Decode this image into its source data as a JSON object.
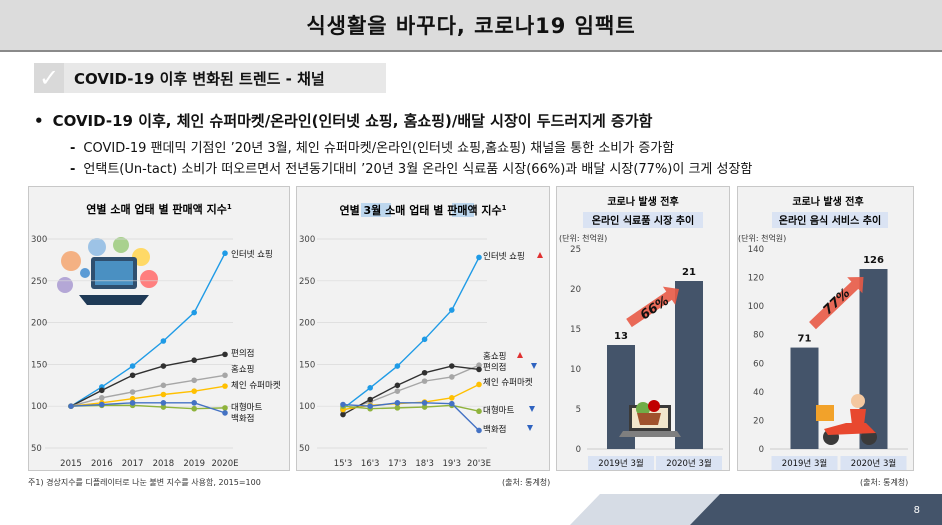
{
  "header": {
    "title": "식생활을 바꾸다, 코로나19 임팩트"
  },
  "section": {
    "check_glyph": "✓",
    "label": "COVID-19 이후 변화된 트렌드 - 채널"
  },
  "bullets": {
    "main_marker": "•",
    "main": "COVID-19 이후, 체인 슈퍼마켓/온라인(인터넷 쇼핑, 홈쇼핑)/배달 시장이 두드러지게 증가함",
    "sub_marker": "-",
    "sub": [
      "COVID-19 팬데믹 기점인 ’20년 3월, 체인 슈퍼마켓/온라인(인터넷 쇼핑,홈쇼핑) 채널을 통한 소비가 증가함",
      "언택트(Un-tact) 소비가 떠오르면서 전년동기대비 ’20년 3월 온라인 식료품 시장(66%)과 배달 시장(77%)이 크게 성장함"
    ]
  },
  "colors": {
    "blue": "#1f9be6",
    "dark": "#303030",
    "gray": "#a6a6a6",
    "yellow": "#ffc000",
    "green": "#8fb33c",
    "navy": "#4472c4",
    "bar": "#44546a",
    "up": "#e03030",
    "down": "#2f63c0"
  },
  "icons": {
    "chart1": "online-shopping-illustration",
    "chart3": "laptop-grocery-icon",
    "chart4": "delivery-scooter-icon"
  },
  "chart_data": [
    {
      "type": "line",
      "title": "연별 소매 업태 별 판매액 지수",
      "title_sup": "1",
      "x": [
        "2015",
        "2016",
        "2017",
        "2018",
        "2019",
        "2020E"
      ],
      "ylim": [
        50,
        300
      ],
      "yticks": [
        50,
        100,
        150,
        200,
        250,
        300
      ],
      "series": [
        {
          "name": "인터넷 쇼핑",
          "color": "#1f9be6",
          "values": [
            100,
            123,
            148,
            178,
            212,
            283
          ]
        },
        {
          "name": "편의점",
          "color": "#303030",
          "values": [
            100,
            119,
            137,
            148,
            155,
            162
          ]
        },
        {
          "name": "홈쇼핑",
          "color": "#a6a6a6",
          "values": [
            100,
            110,
            117,
            125,
            131,
            137
          ]
        },
        {
          "name": "체인 슈퍼마켓",
          "color": "#ffc000",
          "values": [
            100,
            104,
            109,
            114,
            118,
            124
          ]
        },
        {
          "name": "대형마트",
          "color": "#8fb33c",
          "values": [
            100,
            101,
            101,
            99,
            97,
            98
          ]
        },
        {
          "name": "백화점",
          "color": "#4472c4",
          "values": [
            100,
            102,
            104,
            104,
            104,
            92
          ]
        }
      ],
      "footnote": "주1) 경상지수를 디플레이터로 나눈 불변 지수를 사용함, 2015=100"
    },
    {
      "type": "line",
      "title_parts": [
        "연별 ",
        "3월",
        " 소매 업태 별 판매액 지수"
      ],
      "title_sup": "1",
      "x": [
        "15'3",
        "16'3",
        "17'3",
        "18'3",
        "19'3",
        "20'3E"
      ],
      "ylim": [
        50,
        300
      ],
      "yticks": [
        50,
        100,
        150,
        200,
        250,
        300
      ],
      "series": [
        {
          "name": "인터넷 쇼핑",
          "color": "#1f9be6",
          "trend": "up",
          "values": [
            97,
            122,
            148,
            180,
            215,
            278
          ]
        },
        {
          "name": "홈쇼핑",
          "color": "#a6a6a6",
          "trend": "up",
          "values": [
            95,
            105,
            118,
            130,
            135,
            149
          ]
        },
        {
          "name": "편의점",
          "color": "#303030",
          "trend": "down",
          "values": [
            90,
            108,
            125,
            140,
            148,
            144
          ]
        },
        {
          "name": "체인 슈퍼마켓",
          "color": "#ffc000",
          "trend": "up",
          "values": [
            96,
            101,
            103,
            105,
            110,
            126
          ]
        },
        {
          "name": "대형마트",
          "color": "#8fb33c",
          "trend": "down",
          "values": [
            100,
            97,
            98,
            99,
            101,
            94
          ]
        },
        {
          "name": "백화점",
          "color": "#4472c4",
          "trend": "down",
          "values": [
            102,
            100,
            104,
            104,
            103,
            71
          ]
        }
      ],
      "source": "(출처: 통계청)"
    },
    {
      "type": "bar",
      "title_lines": [
        "코로나 발생 전후",
        "온라인 식료품 시장 추이"
      ],
      "unit": "(단위: 천억원)",
      "categories": [
        "2019년 3월",
        "2020년 3월"
      ],
      "values": [
        13,
        21
      ],
      "ylim": [
        0,
        25
      ],
      "yticks": [
        0,
        5,
        10,
        15,
        20,
        25
      ],
      "growth": "66%"
    },
    {
      "type": "bar",
      "title_lines": [
        "코로나 발생 전후",
        "온라인 음식 서비스 추이"
      ],
      "unit": "(단위: 천억원)",
      "categories": [
        "2019년 3월",
        "2020년 3월"
      ],
      "values": [
        71,
        126
      ],
      "ylim": [
        0,
        140
      ],
      "yticks": [
        0,
        20,
        40,
        60,
        80,
        100,
        120,
        140
      ],
      "growth": "77%",
      "source": "(출처: 통계청)"
    }
  ],
  "page": {
    "number": "8"
  }
}
